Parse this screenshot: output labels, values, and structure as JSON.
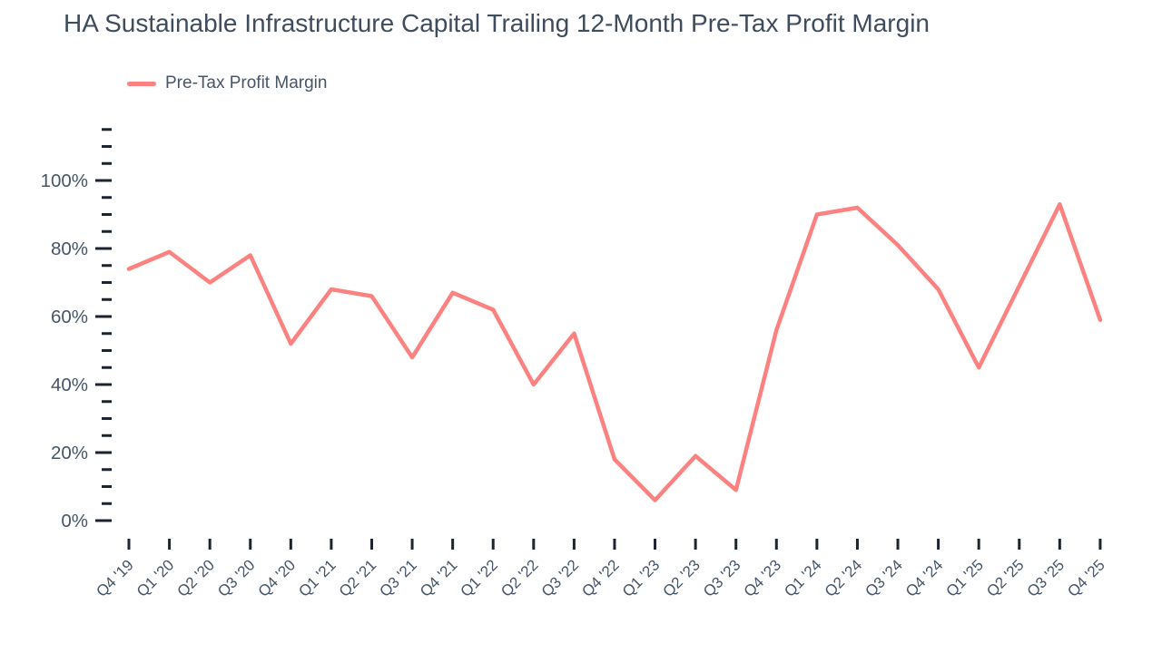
{
  "title": "HA Sustainable Infrastructure Capital Trailing 12-Month Pre-Tax Profit Margin",
  "legend": {
    "label": "Pre-Tax Profit Margin"
  },
  "colors": {
    "line": "#fc8181",
    "text": "#46556a",
    "title_text": "#3e4c5e",
    "tick": "#1c2430",
    "background": "#ffffff"
  },
  "chart_data": {
    "type": "line",
    "title": "HA Sustainable Infrastructure Capital Trailing 12-Month Pre-Tax Profit Margin",
    "xlabel": "",
    "ylabel": "",
    "categories": [
      "Q4 '19",
      "Q1 '20",
      "Q2 '20",
      "Q3 '20",
      "Q4 '20",
      "Q1 '21",
      "Q2 '21",
      "Q3 '21",
      "Q4 '21",
      "Q1 '22",
      "Q2 '22",
      "Q3 '22",
      "Q4 '22",
      "Q1 '23",
      "Q2 '23",
      "Q3 '23",
      "Q4 '23",
      "Q1 '24",
      "Q2 '24",
      "Q3 '24",
      "Q4 '24",
      "Q1 '25",
      "Q2 '25",
      "Q3 '25",
      "Q4 '25"
    ],
    "series": [
      {
        "name": "Pre-Tax Profit Margin",
        "unit": "%",
        "values": [
          74,
          79,
          70,
          78,
          52,
          68,
          66,
          48,
          67,
          62,
          40,
          55,
          18,
          6,
          19,
          9,
          56,
          90,
          92,
          81,
          68,
          45,
          69,
          93,
          59
        ]
      }
    ],
    "ylim": [
      0,
      115
    ],
    "y_major_ticks": [
      0,
      20,
      40,
      60,
      80,
      100
    ],
    "y_tick_labels": [
      "0%",
      "20%",
      "40%",
      "60%",
      "80%",
      "100%"
    ],
    "y_minor_step": 5,
    "grid": false,
    "legend_position": "top-left"
  }
}
